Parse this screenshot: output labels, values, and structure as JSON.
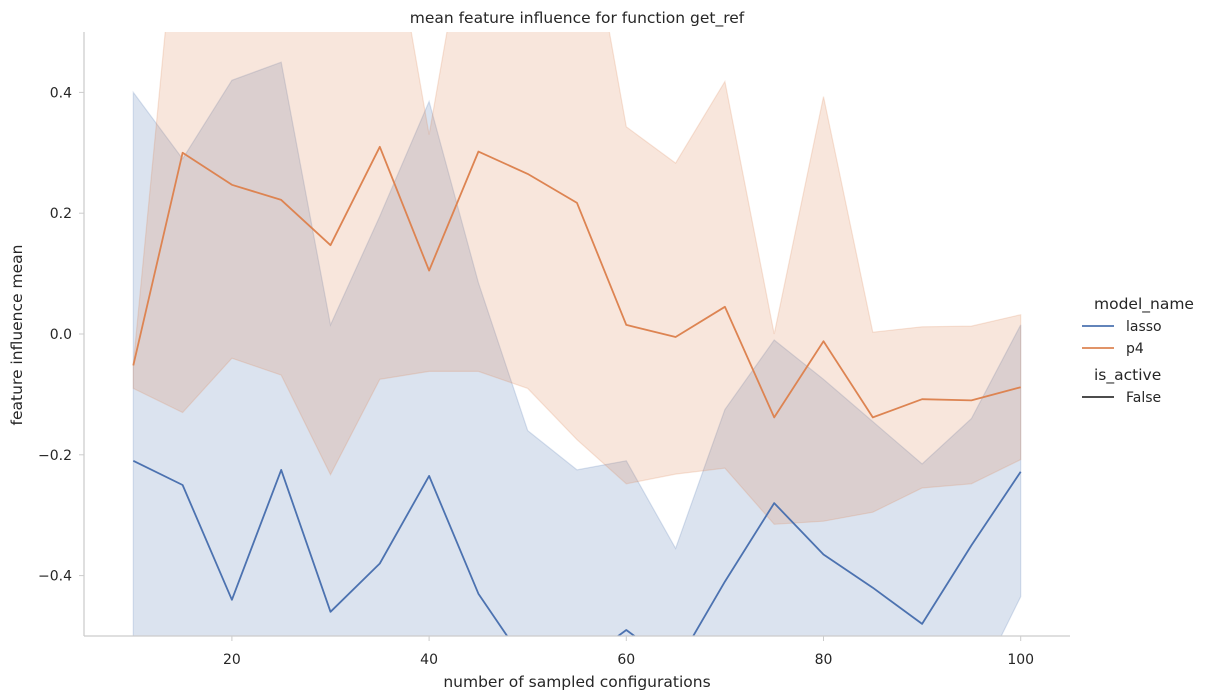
{
  "chart_data": {
    "type": "line",
    "title": "mean feature influence for function get_ref",
    "xlabel": "number of sampled configurations",
    "ylabel": "feature influence mean",
    "xlim": [
      5,
      105
    ],
    "ylim": [
      -0.5,
      0.5
    ],
    "x_ticks": [
      20,
      40,
      60,
      80,
      100
    ],
    "y_ticks": [
      -0.4,
      -0.2,
      0.0,
      0.2,
      0.4
    ],
    "x_tick_labels": [
      "20",
      "40",
      "60",
      "80",
      "100"
    ],
    "y_tick_labels": [
      "−0.4",
      "−0.2",
      "0.0",
      "0.2",
      "0.4"
    ],
    "grid": false,
    "legend_placement": "right",
    "x": [
      10,
      15,
      20,
      25,
      30,
      35,
      40,
      45,
      50,
      55,
      60,
      65,
      70,
      75,
      80,
      85,
      90,
      95,
      100
    ],
    "series": [
      {
        "name": "lasso",
        "color": "#4c72b0",
        "values": [
          -0.21,
          -0.25,
          -0.44,
          -0.225,
          -0.46,
          -0.38,
          -0.235,
          -0.43,
          -0.55,
          -0.55,
          -0.49,
          -0.55,
          -0.41,
          -0.28,
          -0.365,
          -0.42,
          -0.48,
          -0.35,
          -0.228
        ],
        "upper": [
          0.4,
          0.29,
          0.42,
          0.45,
          0.015,
          0.195,
          0.385,
          0.085,
          -0.16,
          -0.225,
          -0.21,
          -0.355,
          -0.125,
          -0.01,
          -0.075,
          -0.145,
          -0.215,
          -0.14,
          0.015
        ],
        "lower": [
          -0.6,
          -0.6,
          -0.6,
          -0.6,
          -0.6,
          -0.6,
          -0.6,
          -0.6,
          -0.6,
          -0.6,
          -0.6,
          -0.6,
          -0.6,
          -0.6,
          -0.6,
          -0.6,
          -0.6,
          -0.6,
          -0.435
        ]
      },
      {
        "name": "p4",
        "color": "#dd8452",
        "values": [
          -0.052,
          0.3,
          0.247,
          0.222,
          0.147,
          0.31,
          0.105,
          0.302,
          0.265,
          0.217,
          0.015,
          -0.005,
          0.045,
          -0.138,
          -0.012,
          -0.138,
          -0.108,
          -0.11,
          -0.088
        ],
        "upper": [
          -0.05,
          0.8,
          0.8,
          0.8,
          0.8,
          0.8,
          0.33,
          0.8,
          0.8,
          0.8,
          0.343,
          0.283,
          0.418,
          0.0,
          0.393,
          0.003,
          0.012,
          0.013,
          0.032
        ],
        "lower": [
          -0.09,
          -0.13,
          -0.04,
          -0.068,
          -0.233,
          -0.075,
          -0.062,
          -0.062,
          -0.09,
          -0.175,
          -0.248,
          -0.232,
          -0.222,
          -0.315,
          -0.31,
          -0.295,
          -0.255,
          -0.248,
          -0.208
        ]
      }
    ],
    "legend": {
      "title": "model_name",
      "entries": [
        "lasso",
        "p4"
      ],
      "style_title": "is_active",
      "style_entries": [
        "False"
      ],
      "style_color": "#333333"
    }
  }
}
